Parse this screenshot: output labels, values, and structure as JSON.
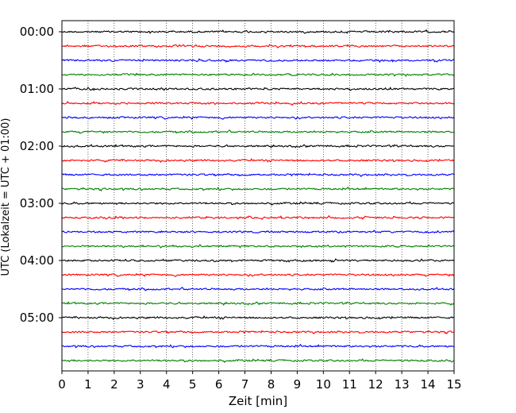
{
  "chart_data": {
    "type": "line",
    "title": "",
    "xlabel": "Zeit  [min]",
    "ylabel": "UTC (Lokalzeit = UTC + 01:00)",
    "xlim": [
      0,
      15
    ],
    "x_ticks": [
      "0",
      "1",
      "2",
      "3",
      "4",
      "5",
      "6",
      "7",
      "8",
      "9",
      "10",
      "11",
      "12",
      "13",
      "14",
      "15"
    ],
    "y_ticks": [
      "00:00",
      "01:00",
      "02:00",
      "03:00",
      "04:00",
      "05:00"
    ],
    "vertical_grid": "dotted",
    "rows_per_hour": 4,
    "row_colors": [
      "#000000",
      "#ff0000",
      "#0000ff",
      "#008000"
    ],
    "traces": [
      {
        "start": "00:00",
        "color": "#000000"
      },
      {
        "start": "00:15",
        "color": "#ff0000"
      },
      {
        "start": "00:30",
        "color": "#0000ff"
      },
      {
        "start": "00:45",
        "color": "#008000"
      },
      {
        "start": "01:00",
        "color": "#000000"
      },
      {
        "start": "01:15",
        "color": "#ff0000"
      },
      {
        "start": "01:30",
        "color": "#0000ff"
      },
      {
        "start": "01:45",
        "color": "#008000"
      },
      {
        "start": "02:00",
        "color": "#000000"
      },
      {
        "start": "02:15",
        "color": "#ff0000"
      },
      {
        "start": "02:30",
        "color": "#0000ff"
      },
      {
        "start": "02:45",
        "color": "#008000"
      },
      {
        "start": "03:00",
        "color": "#000000"
      },
      {
        "start": "03:15",
        "color": "#ff0000"
      },
      {
        "start": "03:30",
        "color": "#0000ff"
      },
      {
        "start": "03:45",
        "color": "#008000"
      },
      {
        "start": "04:00",
        "color": "#000000"
      },
      {
        "start": "04:15",
        "color": "#ff0000"
      },
      {
        "start": "04:30",
        "color": "#0000ff"
      },
      {
        "start": "04:45",
        "color": "#008000"
      },
      {
        "start": "05:00",
        "color": "#000000"
      },
      {
        "start": "05:15",
        "color": "#ff0000"
      },
      {
        "start": "05:30",
        "color": "#0000ff"
      },
      {
        "start": "05:45",
        "color": "#008000"
      }
    ]
  }
}
